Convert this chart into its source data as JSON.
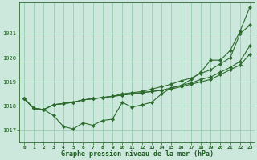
{
  "background_color": "#cce8dc",
  "grid_color": "#99ccb3",
  "line_color": "#2d6a2d",
  "text_color": "#1a5c1a",
  "xlabel": "Graphe pression niveau de la mer (hPa)",
  "xlim": [
    -0.5,
    23.5
  ],
  "ylim": [
    1016.5,
    1022.3
  ],
  "yticks": [
    1017,
    1018,
    1019,
    1020,
    1021
  ],
  "xticks": [
    0,
    1,
    2,
    3,
    4,
    5,
    6,
    7,
    8,
    9,
    10,
    11,
    12,
    13,
    14,
    15,
    16,
    17,
    18,
    19,
    20,
    21,
    22,
    23
  ],
  "series1": [
    1018.3,
    1017.9,
    1017.85,
    1017.6,
    1017.15,
    1017.05,
    1017.3,
    1017.2,
    1017.4,
    1017.45,
    1018.15,
    1017.95,
    1018.05,
    1018.15,
    1018.5,
    1018.75,
    1018.85,
    1019.1,
    1019.4,
    1019.9,
    1019.9,
    1020.3,
    1021.1,
    1022.1
  ],
  "series2": [
    1018.3,
    1017.9,
    1017.85,
    1018.05,
    1018.1,
    1018.15,
    1018.25,
    1018.3,
    1018.35,
    1018.4,
    1018.5,
    1018.55,
    1018.6,
    1018.7,
    1018.8,
    1018.9,
    1019.05,
    1019.15,
    1019.35,
    1019.5,
    1019.75,
    1020.0,
    1021.0,
    1021.35
  ],
  "series3": [
    1018.3,
    1017.9,
    1017.85,
    1018.05,
    1018.1,
    1018.15,
    1018.25,
    1018.3,
    1018.35,
    1018.4,
    1018.45,
    1018.5,
    1018.55,
    1018.6,
    1018.65,
    1018.75,
    1018.85,
    1018.95,
    1019.1,
    1019.2,
    1019.4,
    1019.6,
    1019.85,
    1020.5
  ],
  "series4": [
    1018.3,
    1017.9,
    1017.85,
    1018.05,
    1018.1,
    1018.15,
    1018.25,
    1018.3,
    1018.35,
    1018.4,
    1018.45,
    1018.5,
    1018.55,
    1018.6,
    1018.65,
    1018.7,
    1018.8,
    1018.9,
    1019.0,
    1019.1,
    1019.3,
    1019.5,
    1019.7,
    1020.15
  ]
}
